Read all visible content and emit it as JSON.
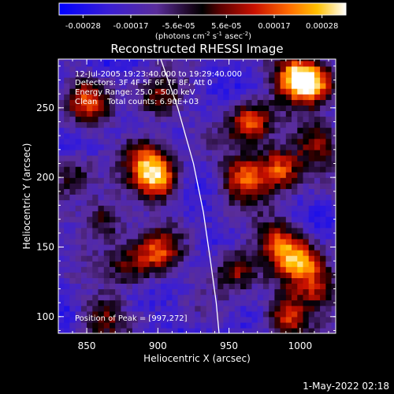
{
  "chart_data": {
    "type": "heatmap",
    "title": "Reconstructed RHESSI Image",
    "xlabel": "Heliocentric X (arcsec)",
    "ylabel": "Heliocentric Y (arcsec)",
    "xlim": [
      830,
      1025
    ],
    "ylim": [
      88,
      285
    ],
    "x_ticks": [
      850,
      900,
      950,
      1000
    ],
    "y_ticks": [
      100,
      150,
      200,
      250
    ],
    "colorbar": {
      "ticks": [
        "-0.00028",
        "-0.00017",
        "-5.6e-05",
        "5.6e-05",
        "0.00017",
        "0.00028"
      ],
      "range": [
        -0.00028,
        0.00028
      ],
      "units_prefix": "(photons cm",
      "units_exp1": "-2",
      "units_mid": " s",
      "units_exp2": "-1",
      "units_mid2": " asec",
      "units_exp3": "-2",
      "units_suffix": ")"
    },
    "annotations": {
      "time_range": "12-Jul-2005 19:23:40.000 to 19:29:40.000",
      "detectors": "Detectors: 3F 4F 5F 6F 7F 8F, Att 0",
      "energy": "Energy Range: 25.0 - 50.0 keV",
      "clean": "Clean    Total counts: 6.90E+03",
      "peak": "Position of Peak = [997,272]"
    },
    "limb_curve": [
      [
        902,
        285
      ],
      [
        914,
        250
      ],
      [
        925,
        210
      ],
      [
        932,
        175
      ],
      [
        937,
        140
      ],
      [
        941,
        110
      ],
      [
        943,
        88
      ]
    ],
    "hotspots": [
      {
        "x": 900,
        "y": 199,
        "amp": 1.0
      },
      {
        "x": 890,
        "y": 215,
        "amp": 0.6
      },
      {
        "x": 862,
        "y": 170,
        "amp": 0.6
      },
      {
        "x": 900,
        "y": 146,
        "amp": 0.75
      },
      {
        "x": 880,
        "y": 135,
        "amp": 0.55
      },
      {
        "x": 850,
        "y": 255,
        "amp": 0.7
      },
      {
        "x": 900,
        "y": 255,
        "amp": 0.6
      },
      {
        "x": 965,
        "y": 240,
        "amp": 0.85
      },
      {
        "x": 985,
        "y": 207,
        "amp": 0.95
      },
      {
        "x": 960,
        "y": 200,
        "amp": 0.8
      },
      {
        "x": 1010,
        "y": 270,
        "amp": 0.9
      },
      {
        "x": 997,
        "y": 272,
        "amp": 1.0
      },
      {
        "x": 1012,
        "y": 225,
        "amp": 0.6
      },
      {
        "x": 1000,
        "y": 140,
        "amp": 0.9
      },
      {
        "x": 985,
        "y": 155,
        "amp": 0.7
      },
      {
        "x": 955,
        "y": 135,
        "amp": 0.7
      },
      {
        "x": 990,
        "y": 100,
        "amp": 0.85
      },
      {
        "x": 1015,
        "y": 120,
        "amp": 0.6
      },
      {
        "x": 860,
        "y": 100,
        "amp": 0.5
      },
      {
        "x": 840,
        "y": 205,
        "amp": 0.45
      }
    ]
  },
  "footer": {
    "timestamp": "1-May-2022 02:18"
  }
}
